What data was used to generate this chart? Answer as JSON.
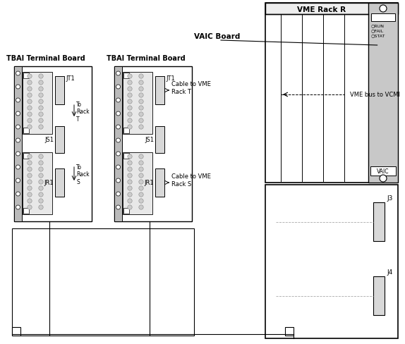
{
  "title": "VME Rack R",
  "tbai_label1": "TBAI Terminal Board",
  "tbai_label2": "TBAI Terminal Board",
  "vaic_board_label": "VAIC Board",
  "vme_bus_label": "VME bus to VCMI",
  "cable_t_label": "Cable to VME\nRack T",
  "cable_s_label": "Cable to VME\nRack S",
  "to_rack_t": "To\nRack\nT",
  "to_rack_s": "To\nRack\nS",
  "run_label": "○RUN",
  "fail_label": "○FAIL",
  "stat_label": "○STAT",
  "vaic_chip_label": "VAIC",
  "j3_label": "J3",
  "j4_label": "J4",
  "jt1_label": "JT1",
  "js1_label": "JS1",
  "jr1_label": "JR1",
  "bg_color": "#ffffff",
  "gray_strip": "#c8c8c8",
  "connector_gray": "#d8d8d8",
  "dark_connector": "#b8b8b8"
}
